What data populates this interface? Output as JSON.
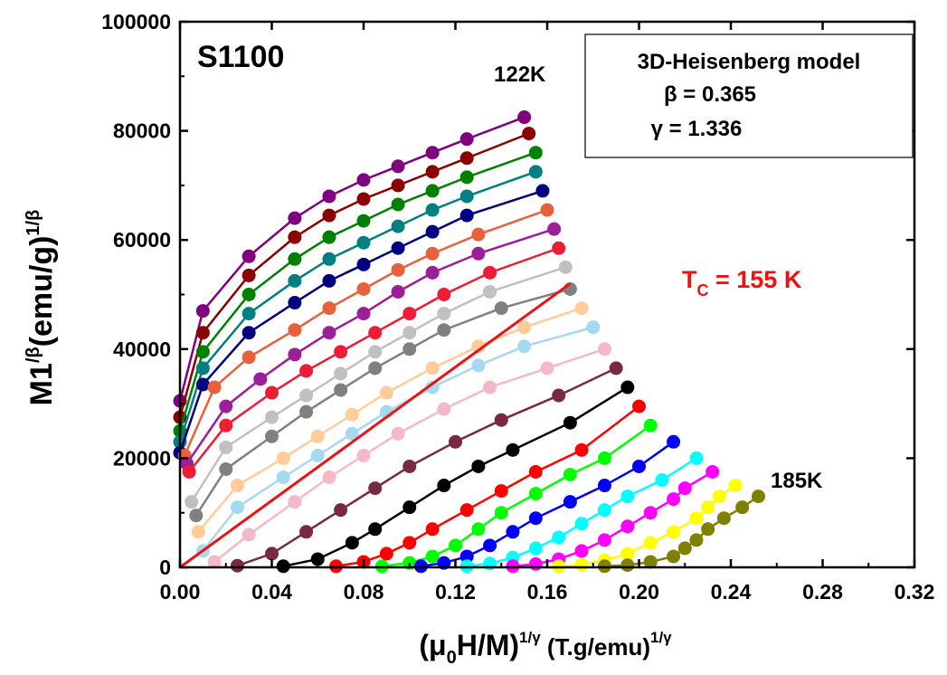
{
  "chart_data": {
    "type": "scatter",
    "sample_label": "S1100",
    "model_box": {
      "title": "3D-Heisenberg model",
      "beta": "β = 0.365",
      "gamma": "γ = 1.336"
    },
    "annotation_top": "122K",
    "annotation_bottom": "185K",
    "tc_label": {
      "main": "T",
      "sub": "C",
      "rest": " = 155 K"
    },
    "tc_line": {
      "x": [
        0.0,
        0.17
      ],
      "y": [
        0,
        52000
      ]
    },
    "ylabel": {
      "main": "M1",
      "sup1": "/β",
      "mid": "(emu/g)",
      "sup2": "1/β"
    },
    "xlabel": {
      "open": "(μ",
      "sub": "0",
      "mid": "H/M)",
      "sup1": "1/γ",
      "rest": " (T.g/emu)",
      "sup2": "1/γ"
    },
    "xlim": [
      0,
      0.32
    ],
    "ylim": [
      0,
      100000
    ],
    "xticks": [
      "0.00",
      "0.04",
      "0.08",
      "0.12",
      "0.16",
      "0.20",
      "0.24",
      "0.28",
      "0.32"
    ],
    "yticks": [
      "0",
      "20000",
      "40000",
      "60000",
      "80000",
      "100000"
    ],
    "xtick_values": [
      0,
      0.04,
      0.08,
      0.12,
      0.16,
      0.2,
      0.24,
      0.28,
      0.32
    ],
    "ytick_values": [
      0,
      20000,
      40000,
      60000,
      80000,
      100000
    ],
    "series": [
      {
        "color": "#800080",
        "x": [
          0.0,
          0.01,
          0.03,
          0.05,
          0.065,
          0.08,
          0.095,
          0.11,
          0.125,
          0.15
        ],
        "y": [
          30500,
          47000,
          57000,
          64000,
          68000,
          71000,
          73500,
          76000,
          78500,
          82500
        ]
      },
      {
        "color": "#8b0000",
        "x": [
          0.0,
          0.01,
          0.03,
          0.05,
          0.065,
          0.08,
          0.095,
          0.11,
          0.125,
          0.152
        ],
        "y": [
          27500,
          43000,
          53500,
          60500,
          64500,
          67500,
          70000,
          72500,
          75000,
          79500
        ]
      },
      {
        "color": "#008000",
        "x": [
          0.0,
          0.01,
          0.03,
          0.05,
          0.065,
          0.08,
          0.095,
          0.11,
          0.125,
          0.155
        ],
        "y": [
          25000,
          39500,
          50000,
          56500,
          60500,
          63500,
          66500,
          69000,
          71500,
          76000
        ]
      },
      {
        "color": "#008080",
        "x": [
          0.0,
          0.01,
          0.03,
          0.05,
          0.065,
          0.08,
          0.095,
          0.11,
          0.125,
          0.155
        ],
        "y": [
          23000,
          36500,
          46500,
          52500,
          56500,
          59500,
          62500,
          65500,
          68000,
          72500
        ]
      },
      {
        "color": "#000080",
        "x": [
          0.0,
          0.01,
          0.03,
          0.05,
          0.065,
          0.08,
          0.095,
          0.11,
          0.125,
          0.158
        ],
        "y": [
          21000,
          33500,
          43000,
          48500,
          52500,
          55500,
          58500,
          61500,
          64500,
          69000
        ]
      },
      {
        "color": "#e8603c",
        "x": [
          0.002,
          0.015,
          0.03,
          0.05,
          0.065,
          0.08,
          0.095,
          0.11,
          0.13,
          0.16
        ],
        "y": [
          20500,
          33000,
          38500,
          43500,
          47500,
          51000,
          54500,
          57500,
          61000,
          65500
        ]
      },
      {
        "color": "#9b1f9b",
        "x": [
          0.003,
          0.02,
          0.035,
          0.05,
          0.065,
          0.08,
          0.095,
          0.11,
          0.13,
          0.163
        ],
        "y": [
          19000,
          29500,
          34500,
          39000,
          43000,
          46500,
          50500,
          54000,
          57500,
          62000
        ]
      },
      {
        "color": "#ee1c34",
        "x": [
          0.004,
          0.02,
          0.04,
          0.055,
          0.07,
          0.085,
          0.1,
          0.115,
          0.135,
          0.165
        ],
        "y": [
          17500,
          26000,
          32000,
          36000,
          39500,
          43000,
          46500,
          50000,
          54000,
          58500
        ]
      },
      {
        "color": "#c0c0c0",
        "x": [
          0.005,
          0.02,
          0.04,
          0.055,
          0.07,
          0.085,
          0.1,
          0.115,
          0.135,
          0.168
        ],
        "y": [
          12000,
          22000,
          27500,
          31500,
          35500,
          39500,
          43000,
          46500,
          50500,
          55000
        ]
      },
      {
        "color": "#808080",
        "x": [
          0.007,
          0.02,
          0.04,
          0.055,
          0.07,
          0.085,
          0.1,
          0.115,
          0.14,
          0.17
        ],
        "y": [
          9500,
          18000,
          24000,
          28500,
          32500,
          36500,
          40000,
          43500,
          47500,
          51000
        ]
      },
      {
        "color": "#ffcc99",
        "x": [
          0.008,
          0.025,
          0.045,
          0.06,
          0.075,
          0.09,
          0.11,
          0.13,
          0.15,
          0.175
        ],
        "y": [
          6500,
          15000,
          20000,
          24000,
          28000,
          32000,
          36500,
          40500,
          44000,
          47500
        ]
      },
      {
        "color": "#a6d8f0",
        "x": [
          0.01,
          0.025,
          0.045,
          0.06,
          0.075,
          0.09,
          0.11,
          0.13,
          0.15,
          0.18
        ],
        "y": [
          3000,
          11000,
          16500,
          20500,
          24500,
          28500,
          33000,
          37000,
          40500,
          44000
        ]
      },
      {
        "color": "#f4b8c8",
        "x": [
          0.015,
          0.03,
          0.05,
          0.065,
          0.08,
          0.095,
          0.115,
          0.135,
          0.16,
          0.185
        ],
        "y": [
          1000,
          6000,
          12000,
          16500,
          20500,
          24500,
          29000,
          33000,
          36500,
          40000
        ]
      },
      {
        "color": "#7a2a40",
        "x": [
          0.025,
          0.04,
          0.055,
          0.07,
          0.085,
          0.1,
          0.12,
          0.14,
          0.165,
          0.19
        ],
        "y": [
          300,
          2500,
          6500,
          10500,
          14500,
          18500,
          23000,
          27000,
          31500,
          36500
        ]
      },
      {
        "color": "#000000",
        "x": [
          0.045,
          0.06,
          0.075,
          0.085,
          0.1,
          0.115,
          0.13,
          0.145,
          0.17,
          0.195
        ],
        "y": [
          200,
          1500,
          4500,
          7000,
          11000,
          15000,
          18500,
          21500,
          26500,
          33000
        ]
      },
      {
        "color": "#ff0000",
        "x": [
          0.068,
          0.08,
          0.09,
          0.1,
          0.11,
          0.125,
          0.14,
          0.155,
          0.175,
          0.2
        ],
        "y": [
          200,
          1000,
          2500,
          4500,
          7000,
          10500,
          14000,
          17500,
          21500,
          29500
        ]
      },
      {
        "color": "#00ff00",
        "x": [
          0.088,
          0.1,
          0.11,
          0.12,
          0.13,
          0.14,
          0.155,
          0.17,
          0.185,
          0.205
        ],
        "y": [
          200,
          800,
          2000,
          4000,
          7000,
          10000,
          13500,
          17000,
          20000,
          26000
        ]
      },
      {
        "color": "#0000ff",
        "x": [
          0.105,
          0.115,
          0.125,
          0.135,
          0.145,
          0.155,
          0.17,
          0.185,
          0.2,
          0.215
        ],
        "y": [
          200,
          800,
          2000,
          4000,
          6500,
          9000,
          12000,
          15000,
          18500,
          23000
        ]
      },
      {
        "color": "#00ffff",
        "x": [
          0.125,
          0.135,
          0.145,
          0.155,
          0.165,
          0.175,
          0.185,
          0.195,
          0.21,
          0.225
        ],
        "y": [
          200,
          700,
          1800,
          3500,
          5500,
          8000,
          10500,
          13000,
          16000,
          20000
        ]
      },
      {
        "color": "#ff00ff",
        "x": [
          0.145,
          0.155,
          0.165,
          0.175,
          0.185,
          0.195,
          0.205,
          0.215,
          0.22,
          0.232
        ],
        "y": [
          200,
          600,
          1500,
          3000,
          5000,
          7500,
          10000,
          12500,
          14500,
          17500
        ]
      },
      {
        "color": "#ffff00",
        "x": [
          0.165,
          0.175,
          0.185,
          0.195,
          0.205,
          0.215,
          0.225,
          0.23,
          0.235,
          0.242
        ],
        "y": [
          200,
          500,
          1300,
          2500,
          4500,
          6500,
          9000,
          11000,
          13000,
          15000
        ]
      },
      {
        "color": "#808000",
        "x": [
          0.185,
          0.195,
          0.205,
          0.215,
          0.22,
          0.225,
          0.23,
          0.237,
          0.245,
          0.252
        ],
        "y": [
          200,
          400,
          1000,
          2000,
          3500,
          5000,
          7000,
          9000,
          11000,
          13000
        ]
      }
    ]
  }
}
